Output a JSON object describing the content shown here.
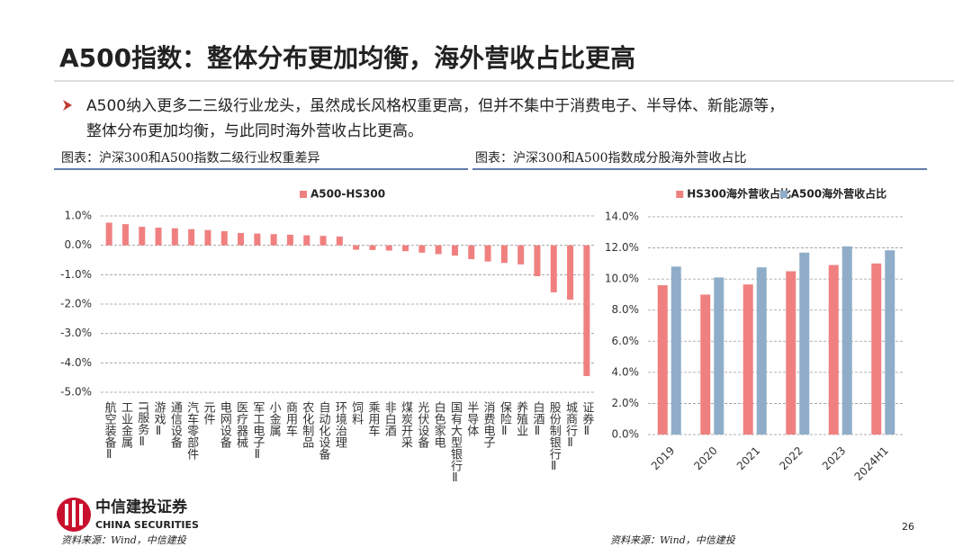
{
  "header": {
    "title": "A500指数：整体分布更加均衡，海外营收占比更高"
  },
  "bullet_lines": [
    "A500纳入更多二三级行业龙头，虽然成长风格权重更高，但并不集中于消费电子、半导体、新能源等，",
    "整体分布更加均衡，与此同时海外营收占比更高。"
  ],
  "footer": {
    "logo_cn": "中信建投证券",
    "logo_en": "CHINA SECURITIES",
    "page": "26"
  },
  "chart_data": [
    {
      "type": "bar",
      "caption": "图表：沪深300和A500指数二级行业权重差异",
      "source": "资料来源：Wind，中信建投",
      "categories": [
        "航空装备Ⅱ",
        "工业金属",
        "IT服务Ⅱ",
        "游戏Ⅱ",
        "通信设备",
        "汽车零部件",
        "元件",
        "电网设备",
        "医疗器械",
        "军工电子Ⅱ",
        "小金属",
        "商用车",
        "农化制品",
        "自动化设备",
        "环境治理",
        "饲料",
        "乘用车",
        "非白酒",
        "煤炭开采",
        "光伏设备",
        "白色家电",
        "国有大型银行Ⅱ",
        "半导体",
        "消费电子",
        "保险Ⅱ",
        "养殖业",
        "白酒Ⅱ",
        "股份制银行Ⅱ",
        "城商行Ⅱ",
        "证券Ⅱ"
      ],
      "series": [
        {
          "name": "A500-HS300",
          "color": "#f08080",
          "values": [
            0.77,
            0.72,
            0.63,
            0.6,
            0.58,
            0.55,
            0.52,
            0.48,
            0.42,
            0.4,
            0.38,
            0.36,
            0.34,
            0.32,
            0.3,
            -0.15,
            -0.16,
            -0.18,
            -0.2,
            -0.25,
            -0.3,
            -0.35,
            -0.47,
            -0.55,
            -0.6,
            -0.65,
            -1.05,
            -1.6,
            -1.85,
            -4.45
          ]
        }
      ],
      "ylim": [
        -5,
        1
      ],
      "yticks": [
        {
          "value": -5,
          "label": "-5.0%"
        },
        {
          "value": -4,
          "label": "-4.0%"
        },
        {
          "value": -3,
          "label": "-3.0%"
        },
        {
          "value": -2,
          "label": "-2.0%"
        },
        {
          "value": -1,
          "label": "-1.0%"
        },
        {
          "value": 0,
          "label": "0.0%"
        },
        {
          "value": 1,
          "label": "1.0%"
        }
      ],
      "grid": true,
      "legend": "top"
    },
    {
      "type": "bar",
      "caption": "图表：沪深300和A500指数成分股海外营收占比",
      "source": "资料来源：Wind，中信建投",
      "categories": [
        "2019",
        "2020",
        "2021",
        "2022",
        "2023",
        "2024H1"
      ],
      "series": [
        {
          "name": "HS300海外营收占比",
          "color": "#f08080",
          "values": [
            9.6,
            9.0,
            9.65,
            10.5,
            10.9,
            11.0
          ]
        },
        {
          "name": "A500海外营收占比",
          "color": "#8fadc8",
          "values": [
            10.8,
            10.1,
            10.75,
            11.7,
            12.1,
            11.85
          ]
        }
      ],
      "ylim": [
        0,
        14
      ],
      "yticks": [
        {
          "value": 0,
          "label": "0.0%"
        },
        {
          "value": 2,
          "label": "2.0%"
        },
        {
          "value": 4,
          "label": "4.0%"
        },
        {
          "value": 6,
          "label": "6.0%"
        },
        {
          "value": 8,
          "label": "8.0%"
        },
        {
          "value": 10,
          "label": "10.0%"
        },
        {
          "value": 12,
          "label": "12.0%"
        },
        {
          "value": 14,
          "label": "14.0%"
        }
      ],
      "grid": true,
      "legend": "top"
    }
  ]
}
